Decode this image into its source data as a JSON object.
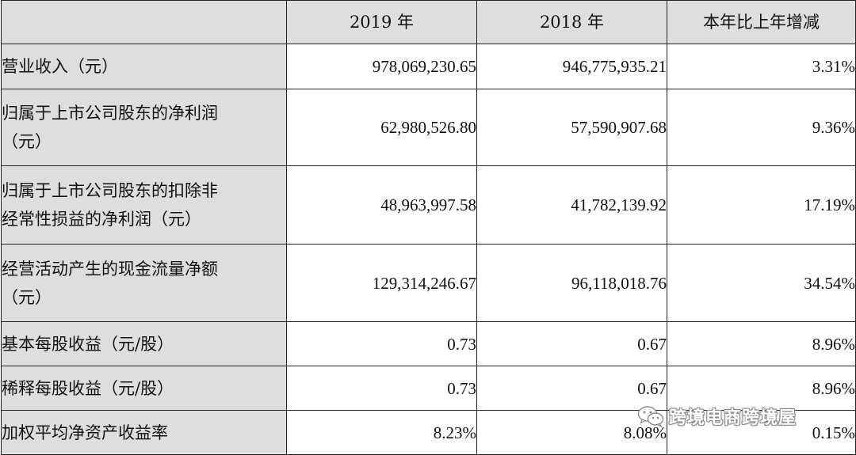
{
  "table": {
    "headers": [
      "",
      "2019 年",
      "2018 年",
      "本年比上年增减"
    ],
    "rows": [
      {
        "label_lines": [
          "营业收入（元）"
        ],
        "v2019": "978,069,230.65",
        "v2018": "946,775,935.21",
        "change": "3.31%"
      },
      {
        "label_lines": [
          "归属于上市公司股东的净利润",
          "（元）"
        ],
        "v2019": "62,980,526.80",
        "v2018": "57,590,907.68",
        "change": "9.36%"
      },
      {
        "label_lines": [
          "归属于上市公司股东的扣除非",
          "经常性损益的净利润（元）"
        ],
        "v2019": "48,963,997.58",
        "v2018": "41,782,139.92",
        "change": "17.19%"
      },
      {
        "label_lines": [
          "经营活动产生的现金流量净额",
          "（元）"
        ],
        "v2019": "129,314,246.67",
        "v2018": "96,118,018.76",
        "change": "34.54%"
      },
      {
        "label_lines": [
          "基本每股收益（元/股）"
        ],
        "v2019": "0.73",
        "v2018": "0.67",
        "change": "8.96%"
      },
      {
        "label_lines": [
          "稀释每股收益（元/股）"
        ],
        "v2019": "0.73",
        "v2018": "0.67",
        "change": "8.96%"
      },
      {
        "label_lines": [
          "加权平均净资产收益率"
        ],
        "v2019": "8.23%",
        "v2018": "8.08%",
        "change": "0.15%"
      }
    ]
  },
  "watermark": {
    "icon": "wechat-icon",
    "text": "跨境电商跨境屋"
  },
  "colors": {
    "label_background": "#dedede",
    "border": "#222222",
    "text": "#111111"
  }
}
